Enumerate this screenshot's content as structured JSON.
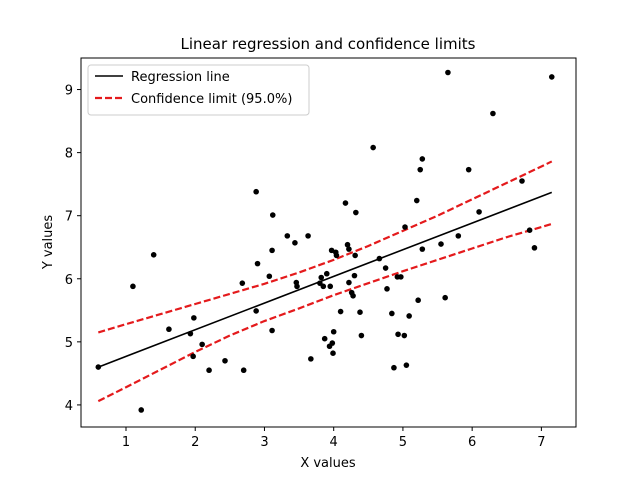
{
  "chart_data": {
    "type": "scatter",
    "title": "Linear regression and confidence limits",
    "xlabel": "X values",
    "ylabel": "Y values",
    "xlim": [
      0.35,
      7.5
    ],
    "ylim": [
      3.65,
      9.5
    ],
    "xticks": [
      "1",
      "2",
      "3",
      "4",
      "5",
      "6",
      "7"
    ],
    "yticks": [
      "4",
      "5",
      "6",
      "7",
      "8",
      "9"
    ],
    "legend_position": "top-left",
    "colors": {
      "points": "#000000",
      "regression": "#000000",
      "confidence": "#e41a1c"
    },
    "legend": [
      {
        "label": "Regression line",
        "style": "solid",
        "color": "#000000"
      },
      {
        "label": "Confidence limit (95.0%)",
        "style": "dashed",
        "color": "#e41a1c"
      }
    ],
    "points": [
      [
        0.6,
        4.6
      ],
      [
        1.1,
        5.88
      ],
      [
        1.22,
        3.92
      ],
      [
        1.4,
        6.38
      ],
      [
        1.62,
        5.2
      ],
      [
        1.93,
        5.13
      ],
      [
        1.97,
        4.77
      ],
      [
        1.98,
        5.38
      ],
      [
        2.1,
        4.96
      ],
      [
        2.2,
        4.55
      ],
      [
        2.43,
        4.7
      ],
      [
        2.68,
        5.93
      ],
      [
        2.7,
        4.55
      ],
      [
        2.88,
        7.38
      ],
      [
        2.88,
        5.49
      ],
      [
        2.9,
        6.24
      ],
      [
        3.07,
        6.04
      ],
      [
        3.11,
        6.45
      ],
      [
        3.12,
        7.01
      ],
      [
        3.11,
        5.18
      ],
      [
        3.33,
        6.68
      ],
      [
        3.44,
        6.57
      ],
      [
        3.46,
        5.94
      ],
      [
        3.47,
        5.88
      ],
      [
        3.63,
        6.68
      ],
      [
        3.67,
        4.73
      ],
      [
        3.8,
        5.93
      ],
      [
        3.82,
        6.02
      ],
      [
        3.85,
        5.88
      ],
      [
        3.87,
        5.05
      ],
      [
        3.9,
        6.08
      ],
      [
        3.94,
        4.93
      ],
      [
        3.95,
        5.88
      ],
      [
        3.97,
        6.45
      ],
      [
        3.98,
        4.98
      ],
      [
        4.0,
        5.16
      ],
      [
        3.99,
        4.82
      ],
      [
        4.03,
        6.42
      ],
      [
        4.04,
        6.37
      ],
      [
        4.1,
        5.48
      ],
      [
        4.17,
        7.2
      ],
      [
        4.2,
        6.54
      ],
      [
        4.22,
        6.47
      ],
      [
        4.22,
        5.94
      ],
      [
        4.26,
        5.78
      ],
      [
        4.28,
        5.73
      ],
      [
        4.3,
        6.05
      ],
      [
        4.31,
        6.37
      ],
      [
        4.32,
        7.05
      ],
      [
        4.38,
        5.47
      ],
      [
        4.4,
        5.1
      ],
      [
        4.57,
        8.08
      ],
      [
        4.66,
        6.32
      ],
      [
        4.75,
        6.17
      ],
      [
        4.77,
        5.84
      ],
      [
        4.84,
        5.45
      ],
      [
        4.87,
        4.59
      ],
      [
        4.92,
        6.03
      ],
      [
        4.93,
        5.12
      ],
      [
        4.97,
        6.03
      ],
      [
        5.02,
        5.1
      ],
      [
        5.03,
        6.82
      ],
      [
        5.05,
        4.63
      ],
      [
        5.09,
        5.41
      ],
      [
        5.2,
        7.24
      ],
      [
        5.22,
        5.66
      ],
      [
        5.25,
        7.73
      ],
      [
        5.28,
        7.9
      ],
      [
        5.28,
        6.47
      ],
      [
        5.55,
        6.55
      ],
      [
        5.61,
        5.7
      ],
      [
        5.65,
        9.27
      ],
      [
        5.8,
        6.68
      ],
      [
        5.95,
        7.73
      ],
      [
        6.1,
        7.06
      ],
      [
        6.3,
        8.62
      ],
      [
        6.72,
        7.55
      ],
      [
        6.83,
        6.77
      ],
      [
        6.9,
        6.49
      ],
      [
        7.15,
        9.2
      ]
    ],
    "regression_line": {
      "x": [
        0.6,
        7.15
      ],
      "y": [
        4.6,
        7.37
      ]
    },
    "confidence_upper": {
      "x": [
        0.6,
        1.0,
        1.5,
        2.0,
        2.5,
        3.0,
        3.5,
        4.0,
        4.5,
        5.0,
        5.5,
        6.0,
        6.5,
        7.0,
        7.15
      ],
      "y": [
        5.15,
        5.28,
        5.44,
        5.6,
        5.76,
        5.92,
        6.1,
        6.3,
        6.52,
        6.76,
        7.0,
        7.26,
        7.52,
        7.78,
        7.86
      ]
    },
    "confidence_lower": {
      "x": [
        0.6,
        1.0,
        1.5,
        2.0,
        2.5,
        3.0,
        3.5,
        4.0,
        4.5,
        5.0,
        5.5,
        6.0,
        6.5,
        7.0,
        7.15
      ],
      "y": [
        4.06,
        4.28,
        4.56,
        4.84,
        5.1,
        5.33,
        5.53,
        5.74,
        5.93,
        6.12,
        6.3,
        6.48,
        6.66,
        6.82,
        6.87
      ]
    }
  }
}
